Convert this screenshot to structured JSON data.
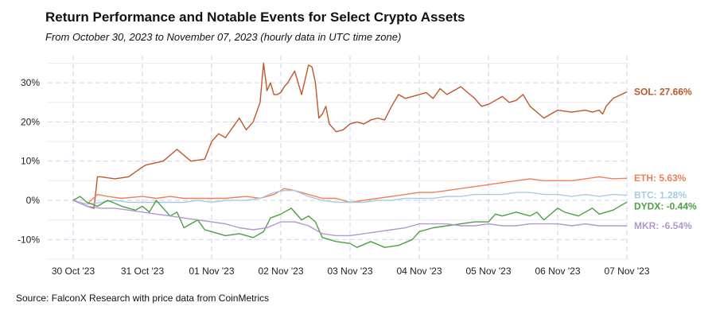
{
  "header": {
    "title": "Return Performance and Notable Events for Select Crypto Assets",
    "subtitle": "From October 30, 2023 to November 07, 2023 (hourly data in UTC time zone)"
  },
  "footer": {
    "source": "Source: FalconX Research with price data from CoinMetrics"
  },
  "chart_data": {
    "type": "line",
    "title": "Return Performance and Notable Events for Select Crypto Assets",
    "subtitle": "From October 30, 2023 to November 07, 2023 (hourly data in UTC time zone)",
    "xlabel": "",
    "ylabel": "",
    "x_unit": "days since 30 Oct 2023 00:00 UTC",
    "xlim": [
      -0.35,
      8.1
    ],
    "ylim": [
      -15,
      37
    ],
    "yticks": [
      -10,
      0,
      10,
      20,
      30
    ],
    "ytick_labels": [
      "-10%",
      "0%",
      "10%",
      "20%",
      "30%"
    ],
    "xticks": [
      0,
      1,
      2,
      3,
      4,
      5,
      6,
      7,
      8
    ],
    "xtick_labels": [
      "30 Oct '23",
      "31 Oct '23",
      "01 Nov '23",
      "02 Nov '23",
      "03 Nov '23",
      "04 Nov '23",
      "05 Nov '23",
      "06 Nov '23",
      "07 Nov '23"
    ],
    "grid": true,
    "legend": "end-labels",
    "series": [
      {
        "name": "SOL",
        "label": "SOL: 27.66%",
        "color": "#c0562a",
        "x": [
          0,
          0.2,
          0.3,
          0.35,
          0.4,
          0.6,
          0.8,
          1.0,
          1.05,
          1.3,
          1.5,
          1.7,
          1.9,
          2.0,
          2.1,
          2.2,
          2.4,
          2.5,
          2.6,
          2.7,
          2.75,
          2.8,
          2.85,
          2.9,
          2.95,
          3.0,
          3.05,
          3.1,
          3.2,
          3.3,
          3.4,
          3.45,
          3.5,
          3.55,
          3.6,
          3.65,
          3.7,
          3.8,
          3.9,
          4.0,
          4.1,
          4.2,
          4.3,
          4.4,
          4.5,
          4.6,
          4.7,
          4.8,
          4.9,
          5.0,
          5.1,
          5.2,
          5.3,
          5.4,
          5.5,
          5.6,
          5.7,
          5.8,
          5.9,
          6.0,
          6.1,
          6.2,
          6.3,
          6.4,
          6.5,
          6.6,
          6.7,
          6.8,
          6.9,
          7.0,
          7.2,
          7.4,
          7.5,
          7.6,
          7.65,
          7.7,
          7.8,
          8.0
        ],
        "y": [
          0,
          -1.5,
          -2.0,
          6.0,
          6.0,
          5.5,
          6.0,
          8.5,
          9.0,
          10.0,
          13.0,
          10.0,
          10.5,
          15.0,
          17.0,
          16.0,
          21.0,
          18.0,
          20.0,
          25.0,
          35.0,
          28.0,
          30.0,
          27.0,
          27.0,
          27.5,
          29.0,
          30.0,
          33.0,
          27.0,
          34.5,
          34.0,
          30.0,
          21.0,
          22.0,
          24.0,
          19.5,
          17.5,
          18.0,
          19.5,
          20.0,
          19.5,
          20.5,
          21.0,
          20.5,
          24.0,
          27.0,
          26.0,
          26.5,
          27.0,
          27.5,
          26.0,
          28.5,
          27.0,
          28.0,
          29.0,
          27.5,
          26.0,
          24.0,
          24.5,
          25.5,
          26.5,
          25.0,
          25.5,
          27.0,
          24.0,
          22.5,
          21.0,
          22.0,
          23.0,
          22.5,
          23.0,
          22.5,
          23.0,
          22.0,
          24.0,
          26.0,
          27.66
        ]
      },
      {
        "name": "ETH",
        "label": "ETH: 5.63%",
        "color": "#f07f57",
        "x": [
          0,
          0.2,
          0.35,
          0.5,
          0.7,
          1.0,
          1.2,
          1.4,
          1.6,
          1.8,
          2.0,
          2.2,
          2.5,
          2.7,
          2.9,
          3.05,
          3.2,
          3.4,
          3.6,
          3.8,
          4.0,
          4.2,
          4.4,
          4.6,
          4.8,
          5.0,
          5.2,
          5.4,
          5.6,
          5.8,
          6.0,
          6.2,
          6.4,
          6.6,
          6.8,
          7.0,
          7.2,
          7.4,
          7.6,
          7.8,
          8.0
        ],
        "y": [
          0,
          -1.0,
          1.5,
          1.0,
          0.5,
          1.0,
          0.5,
          1.0,
          0.5,
          0.5,
          0.5,
          0.5,
          1.0,
          0.5,
          1.5,
          3.0,
          2.5,
          1.5,
          0.5,
          0.5,
          -0.5,
          0,
          0.5,
          1.0,
          1.5,
          2.0,
          2.0,
          2.5,
          3.0,
          3.5,
          4.0,
          4.5,
          5.0,
          5.5,
          5.0,
          5.0,
          5.0,
          5.5,
          6.0,
          5.5,
          5.63
        ]
      },
      {
        "name": "BTC",
        "label": "BTC: 1.28%",
        "color": "#a7cbe3",
        "x": [
          0,
          0.2,
          0.4,
          0.6,
          0.8,
          1.0,
          1.2,
          1.4,
          1.6,
          1.8,
          2.0,
          2.2,
          2.5,
          2.7,
          2.9,
          3.05,
          3.2,
          3.4,
          3.6,
          3.8,
          4.0,
          4.2,
          4.4,
          4.6,
          4.8,
          5.0,
          5.2,
          5.4,
          5.6,
          5.8,
          6.0,
          6.2,
          6.4,
          6.6,
          6.8,
          7.0,
          7.2,
          7.4,
          7.6,
          7.8,
          8.0
        ],
        "y": [
          0,
          -1.0,
          -0.5,
          0,
          -0.5,
          -0.5,
          -0.5,
          -0.5,
          -0.5,
          0,
          -0.5,
          0,
          0,
          0.5,
          2.0,
          2.5,
          2.5,
          1.0,
          0,
          -0.5,
          -0.5,
          -0.5,
          0,
          0,
          0.5,
          0.5,
          0.5,
          1.0,
          1.0,
          1.5,
          1.5,
          1.5,
          2.0,
          2.0,
          1.5,
          1.5,
          1.0,
          1.5,
          1.0,
          1.5,
          1.28
        ]
      },
      {
        "name": "DYDX",
        "label": "DYDX: -0.44%",
        "color": "#4aa142",
        "x": [
          0,
          0.1,
          0.2,
          0.35,
          0.5,
          0.7,
          0.9,
          1.0,
          1.1,
          1.2,
          1.4,
          1.5,
          1.6,
          1.8,
          1.9,
          2.0,
          2.2,
          2.4,
          2.6,
          2.75,
          2.85,
          3.0,
          3.15,
          3.3,
          3.4,
          3.5,
          3.6,
          3.8,
          4.0,
          4.1,
          4.3,
          4.5,
          4.7,
          4.9,
          5.0,
          5.2,
          5.4,
          5.6,
          5.8,
          6.0,
          6.1,
          6.2,
          6.4,
          6.6,
          6.7,
          6.8,
          7.0,
          7.1,
          7.3,
          7.5,
          7.6,
          7.8,
          8.0
        ],
        "y": [
          0,
          1.0,
          -0.5,
          -1.5,
          0,
          -1.5,
          -2.5,
          -1.5,
          -3.0,
          0,
          -4.0,
          -3.0,
          -7.0,
          -5.0,
          -7.5,
          -8.0,
          -9.0,
          -8.5,
          -9.5,
          -8.0,
          -4.5,
          -3.5,
          -2.0,
          -5.0,
          -4.0,
          -5.5,
          -9.5,
          -10.5,
          -11.0,
          -12.0,
          -10.5,
          -12.0,
          -11.5,
          -10.0,
          -8.0,
          -7.0,
          -6.5,
          -6.0,
          -5.5,
          -5.5,
          -3.5,
          -4.0,
          -3.0,
          -4.0,
          -3.0,
          -5.0,
          -2.0,
          -3.0,
          -4.0,
          -2.0,
          -3.5,
          -2.5,
          -0.44
        ]
      },
      {
        "name": "MKR",
        "label": "MKR: -6.54%",
        "color": "#b397cf",
        "x": [
          0,
          0.2,
          0.4,
          0.6,
          0.8,
          1.0,
          1.2,
          1.4,
          1.6,
          1.8,
          2.0,
          2.2,
          2.4,
          2.6,
          2.8,
          3.0,
          3.2,
          3.4,
          3.5,
          3.6,
          3.8,
          4.0,
          4.2,
          4.4,
          4.6,
          4.8,
          5.0,
          5.2,
          5.4,
          5.6,
          5.8,
          6.0,
          6.2,
          6.4,
          6.6,
          6.8,
          7.0,
          7.2,
          7.4,
          7.6,
          7.8,
          8.0
        ],
        "y": [
          0,
          -1.5,
          -2.0,
          -2.0,
          -2.5,
          -3.0,
          -3.5,
          -4.0,
          -4.5,
          -5.0,
          -5.5,
          -6.0,
          -7.0,
          -7.5,
          -7.0,
          -5.5,
          -5.5,
          -6.5,
          -7.5,
          -8.5,
          -9.0,
          -9.0,
          -8.5,
          -8.0,
          -7.5,
          -7.0,
          -6.0,
          -6.0,
          -6.0,
          -6.5,
          -6.5,
          -6.0,
          -6.5,
          -6.5,
          -6.0,
          -6.0,
          -6.0,
          -6.5,
          -6.0,
          -6.5,
          -6.5,
          -6.54
        ]
      }
    ]
  }
}
